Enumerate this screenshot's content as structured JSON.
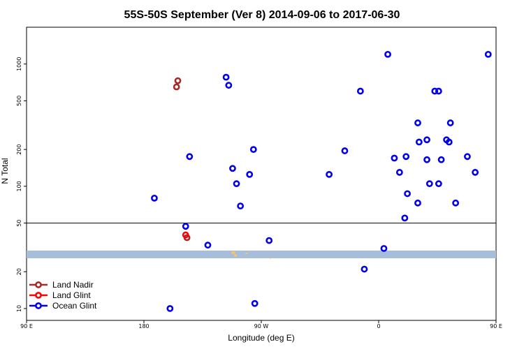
{
  "chart_data": {
    "type": "scatter",
    "title": "55S-50S September (Ver 8)   2014-09-06 to 2017-06-30",
    "xlabel": "Longitude (deg E)",
    "ylabel": "N Total",
    "y_scale": "log",
    "ylim": [
      8,
      2000
    ],
    "y_ticks": [
      10,
      20,
      50,
      100,
      200,
      500,
      1000
    ],
    "x_ticks": [
      "90 E",
      "180",
      "90 W",
      "0",
      "90 E",
      "180"
    ],
    "grid": false,
    "legend_position": "bottom-left",
    "reference_line_y": 50,
    "series": [
      {
        "name": "Land Nadir",
        "color": "#a52a2a",
        "points": [
          {
            "x": "155 W",
            "y": 650
          },
          {
            "x": "154 W",
            "y": 730
          },
          {
            "x": "147 W",
            "y": 38
          }
        ]
      },
      {
        "name": "Land Glint",
        "color": "#ff0000",
        "points": [
          {
            "x": "148 W",
            "y": 40
          }
        ]
      },
      {
        "name": "Ocean Glint",
        "color": "#0000ee",
        "points": [
          {
            "x": "84 E",
            "y": 1200
          },
          {
            "x": "74 E",
            "y": 130
          },
          {
            "x": "68 E",
            "y": 175
          },
          {
            "x": "59 E",
            "y": 73
          },
          {
            "x": "52 E",
            "y": 240
          },
          {
            "x": "46 E",
            "y": 600
          },
          {
            "x": "39 E",
            "y": 105
          },
          {
            "x": "37 E",
            "y": 165
          },
          {
            "x": "31 E",
            "y": 230
          },
          {
            "x": "30 E",
            "y": 330
          },
          {
            "x": "22 E",
            "y": 87
          },
          {
            "x": "20 E",
            "y": 55
          },
          {
            "x": "12 E",
            "y": 170
          },
          {
            "x": "4 E",
            "y": 31
          },
          {
            "x": "172 W",
            "y": 80
          },
          {
            "x": "160 W",
            "y": 10
          },
          {
            "x": "148 W",
            "y": 47
          },
          {
            "x": "145 W",
            "y": 175
          },
          {
            "x": "131 W",
            "y": 33
          },
          {
            "x": "117 W",
            "y": 780
          },
          {
            "x": "115 W",
            "y": 670
          },
          {
            "x": "112 W",
            "y": 140
          },
          {
            "x": "109 W",
            "y": 105
          },
          {
            "x": "106 W",
            "y": 69
          },
          {
            "x": "99 W",
            "y": 125
          },
          {
            "x": "96 W",
            "y": 200
          },
          {
            "x": "95 W",
            "y": 11
          },
          {
            "x": "84 W",
            "y": 36
          },
          {
            "x": "38 W",
            "y": 125
          },
          {
            "x": "26 W",
            "y": 195
          },
          {
            "x": "14 W",
            "y": 600
          },
          {
            "x": "11 W",
            "y": 21
          },
          {
            "x": "7 E",
            "y": 1200
          },
          {
            "x": "16 E",
            "y": 130
          },
          {
            "x": "21 E",
            "y": 175
          },
          {
            "x": "30 E",
            "y": 73
          },
          {
            "x": "37 E",
            "y": 240
          },
          {
            "x": "43 E",
            "y": 600
          },
          {
            "x": "46 E",
            "y": 105
          },
          {
            "x": "48 E",
            "y": 165
          },
          {
            "x": "54 E",
            "y": 230
          },
          {
            "x": "55 E",
            "y": 330
          }
        ]
      }
    ]
  }
}
